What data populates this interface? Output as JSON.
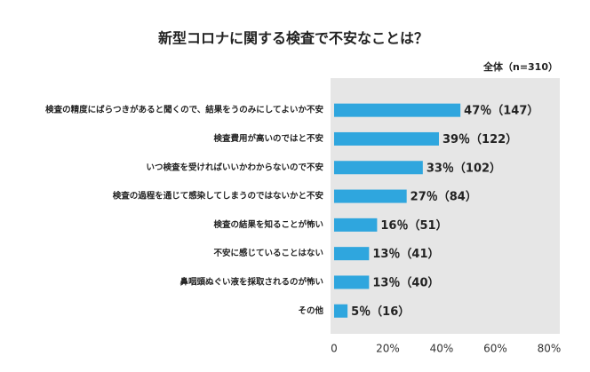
{
  "chart_data": {
    "type": "barh",
    "title": "新型コロナに関する検査で不安なことは？",
    "subtitle": "全体（n=310）",
    "categories": [
      "検査の精度にばらつきがあると聞くので、結果をうのみにしてよいか不安",
      "検査費用が高いのではと不安",
      "いつ検査を受ければいいかわからないので不安",
      "検査の過程を通じて感染してしまうのではないかと不安",
      "検査の結果を知ることが怖い",
      "不安に感じていることはない",
      "鼻咽頭ぬぐい液を採取されるのが怖い",
      "その他"
    ],
    "values": [
      47,
      39,
      33,
      27,
      16,
      13,
      13,
      5
    ],
    "value_labels": [
      "47％（147）",
      "39％（122）",
      "33％（102）",
      "27％（84）",
      "16％（51）",
      "13％（41）",
      "13％（40）",
      "5％（16）"
    ],
    "color": "#2fa6de",
    "xlim": [
      0,
      80
    ],
    "xticks": [
      0,
      {
        "value": 20,
        "label": "20%"
      },
      {
        "value": 40,
        "label": "40%"
      },
      {
        "value": 60,
        "label": "60%"
      },
      {
        "value": 80,
        "label": "80%"
      }
    ]
  }
}
